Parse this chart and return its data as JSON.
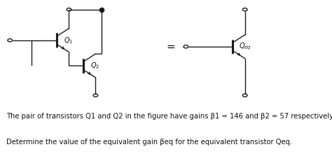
{
  "background_color": "#ffffff",
  "circuit_bg": "#e8e4df",
  "text_line1": "The pair of transistors Q1 and Q2 in the figure have gains β1 = 146 and β2 = 57 respectively.",
  "text_line2": "Determine the value of the equivalent gain βeq for the equivalent transistor Qeq.",
  "label_Q1": "$Q_1$",
  "label_Q2": "$Q_2$",
  "label_Qeq": "$Q_{eq}$",
  "equals_sign": "=",
  "fig_width": 4.74,
  "fig_height": 2.34,
  "dpi": 100,
  "line_color": "#1a1a1a",
  "text_color": "#111111",
  "font_size_labels": 7,
  "font_size_body": 7.2,
  "font_size_equals": 11
}
